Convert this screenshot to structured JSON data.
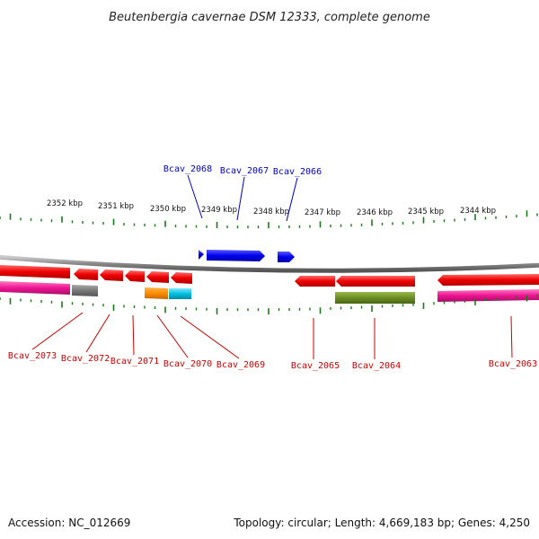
{
  "title": "Beutenbergia cavernae DSM 12333, complete genome",
  "accession": "Accession: NC_012669",
  "summary": "Topology: circular; Length: 4,669,183 bp; Genes: 4,250",
  "scale_labels": [
    "2352 kbp",
    "2351 kbp",
    "2350 kbp",
    "2349 kbp",
    "2348 kbp",
    "2347 kbp",
    "2346 kbp",
    "2345 kbp",
    "2344 kbp"
  ],
  "gene_labels_top": [
    "Bcav_2068",
    "Bcav_2067",
    "Bcav_2066"
  ],
  "gene_labels_bottom": [
    "Bcav_2073",
    "Bcav_2072",
    "Bcav_2071",
    "Bcav_2070",
    "Bcav_2069",
    "Bcav_2065",
    "Bcav_2064",
    "Bcav_2063"
  ],
  "colors": {
    "forward_gene": "#0000ee",
    "reverse_gene": "#ee0000",
    "cds_pink": "#ee1493",
    "cds_gray": "#777777",
    "cds_orange": "#ff8c00",
    "cds_cyan": "#00bfdf",
    "cds_olive": "#6b8e23",
    "tick": "#1a7a1a",
    "backbone": "#888888"
  }
}
